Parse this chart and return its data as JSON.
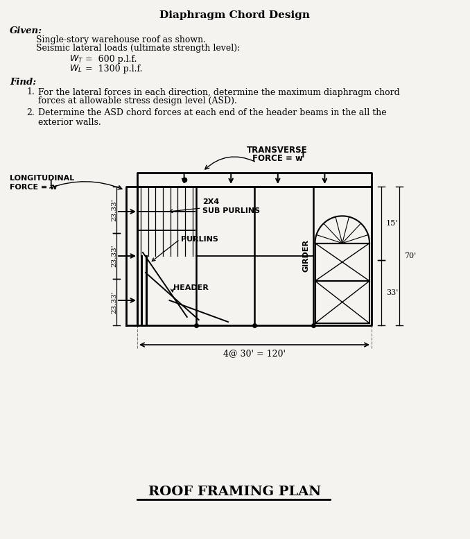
{
  "title": "Diaphragm Chord Design",
  "given_label": "Given:",
  "given_lines": [
    "Single-story warehouse roof as shown.",
    "Seismic lateral loads (ultimate strength level):"
  ],
  "find_label": "Find:",
  "find_item1_a": "For the lateral forces in each direction, determine the maximum diaphragm chord",
  "find_item1_b": "forces at allowable stress design level (ASD).",
  "find_item2_a": "Determine the ASD chord forces at each end of the header beams in the all the",
  "find_item2_b": "exterior walls.",
  "transverse_label1": "TRANSVERSE",
  "transverse_label2": "FORCE = w",
  "longitudinal_label1": "LONGITUDINAL",
  "longitudinal_label2": "FORCE = w",
  "label_2x4": "2X4",
  "label_sub_purlins": "SUB PURLINS",
  "label_purlins": "PURLINS",
  "label_header": "HEADER",
  "label_girder": "GIRDER",
  "dim_bottom": "4@ 30' = 120'",
  "dim_right_top": "15'",
  "dim_right_mid": "33'",
  "dim_right_total": "70'",
  "dim_left_labels": [
    "23.33'",
    "23.33'",
    "23.33'"
  ],
  "footer_title": "ROOF FRAMING PLAN",
  "bg_color": "#f5f3f0",
  "black": "#000000"
}
